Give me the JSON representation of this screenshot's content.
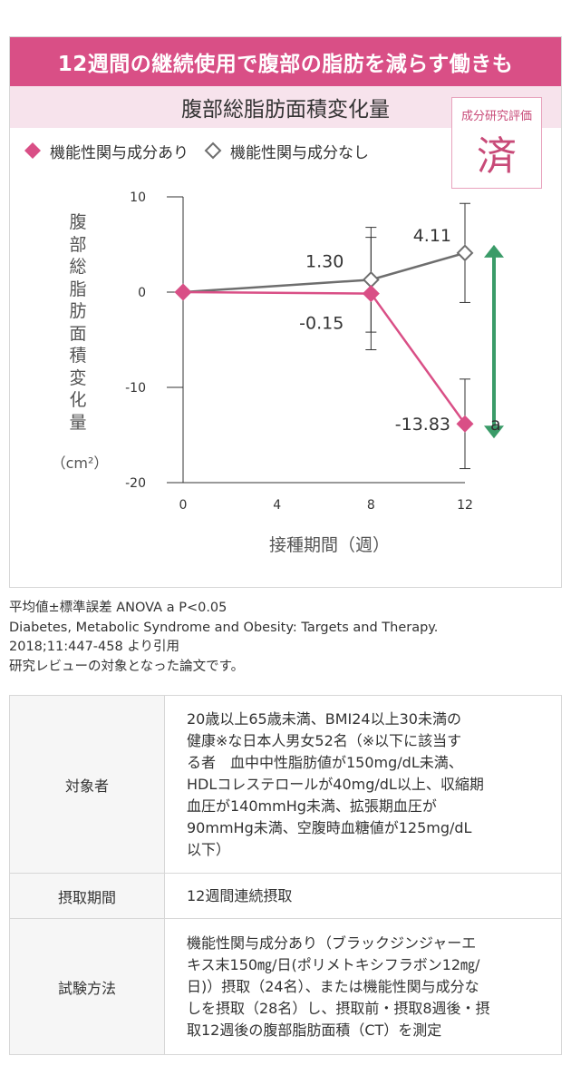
{
  "banner": "12週間の継続使用で腹部の脂肪を減らす働きも",
  "subtitle": "腹部総脂肪面積変化量",
  "stamp": {
    "label": "成分研究評価",
    "char": "済"
  },
  "legend": [
    {
      "label": "機能性関与成分あり",
      "marker": "filled-diamond",
      "color": "#d94f86"
    },
    {
      "label": "機能性関与成分なし",
      "marker": "open-diamond",
      "color": "#6e6e6e"
    }
  ],
  "chart_data": {
    "type": "line",
    "title": "腹部総脂肪面積変化量",
    "ylabel": "腹部総脂肪面積変化量",
    "yunit": "（cm²）",
    "xlabel": "接種期間（週）",
    "xlim": [
      0,
      12
    ],
    "ylim": [
      -20,
      10
    ],
    "xticks": [
      "0",
      "4",
      "8",
      "12"
    ],
    "yticks": [
      "10",
      "0",
      "-10",
      "-20"
    ],
    "grid": false,
    "legend_position": "top-left",
    "series": [
      {
        "name": "機能性関与成分なし",
        "color": "#6e6e6e",
        "marker": "open-diamond",
        "x": [
          0,
          8,
          12
        ],
        "y": [
          0,
          1.3,
          4.11
        ],
        "error": [
          0,
          5.5,
          5.2
        ],
        "labels": [
          "",
          "1.30",
          "4.11"
        ]
      },
      {
        "name": "機能性関与成分あり",
        "color": "#d94f86",
        "marker": "filled-diamond",
        "x": [
          0,
          8,
          12
        ],
        "y": [
          0,
          -0.15,
          -13.83
        ],
        "error": [
          0,
          5.9,
          4.7
        ],
        "labels": [
          "",
          "-0.15",
          "-13.83"
        ]
      }
    ],
    "annotation": {
      "text": "a",
      "color": "#3a9b68",
      "from": 4.11,
      "to": -13.83,
      "x": 12
    }
  },
  "notes": [
    "平均値±標準誤差 ANOVA a P<0.05",
    "Diabetes, Metabolic Syndrome and Obesity: Targets and Therapy.",
    "2018;11:447-458 より引用",
    "研究レビューの対象となった論文です。"
  ],
  "table": [
    {
      "head": "対象者",
      "lines": [
        "20歳以上65歳未満、BMI24以上30未満の",
        "健康※な日本人男女52名（※以下に該当す",
        "る者　血中中性脂肪値が150mg/dL未満、",
        "HDLコレステロールが40mg/dL以上、収縮期",
        "血圧が140mmHg未満、拡張期血圧が",
        "90mmHg未満、空腹時血糖値が125mg/dL",
        "以下）"
      ]
    },
    {
      "head": "摂取期間",
      "lines": [
        "12週間連続摂取"
      ]
    },
    {
      "head": "試験方法",
      "lines": [
        "機能性関与成分あり（ブラックジンジャーエ",
        "キス末150㎎/日(ポリメトキシフラボン12㎎/",
        "日)）摂取（24名）、または機能性関与成分な",
        "しを摂取（28名）し、摂取前・摂取8週後・摂",
        "取12週後の腹部脂肪面積（CT）を測定"
      ]
    }
  ]
}
